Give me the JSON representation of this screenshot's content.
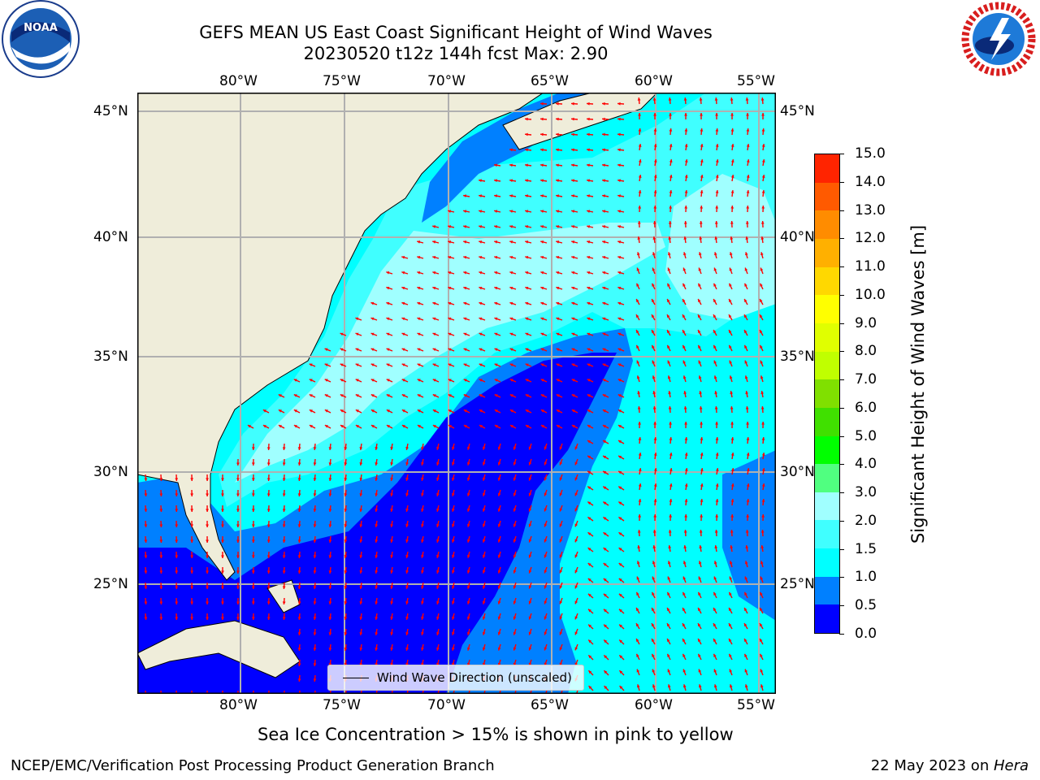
{
  "title": {
    "line1": "GEFS MEAN US East Coast Significant Height of Wind Waves",
    "line2": "20230520 t12z 144h fcst   Max: 2.90"
  },
  "logos": {
    "noaa_text": "NOAA",
    "nws_text": "NATIONAL WEATHER SERVICE"
  },
  "map": {
    "lon_labels": [
      "80°W",
      "75°W",
      "70°W",
      "65°W",
      "60°W",
      "55°W"
    ],
    "lat_labels": [
      "45°N",
      "40°N",
      "35°N",
      "30°N",
      "25°N"
    ],
    "legend_label": "Wind Wave Direction (unscaled)",
    "colors": {
      "land": "#efedda",
      "arrow": "#ff0000",
      "grid": "#b0b0b0"
    }
  },
  "colorbar": {
    "label": "Significant Height of Wind Waves [m]",
    "ticks": [
      "15.0",
      "14.0",
      "13.0",
      "12.0",
      "11.0",
      "10.0",
      "9.0",
      "8.0",
      "7.0",
      "6.0",
      "5.0",
      "4.0",
      "3.0",
      "2.0",
      "1.5",
      "1.0",
      "0.5",
      "0.0"
    ],
    "colors_bottom_to_top": [
      "#0000ff",
      "#0080ff",
      "#00ffff",
      "#40ffff",
      "#a0ffff",
      "#50ff80",
      "#00ff00",
      "#40e000",
      "#80e000",
      "#c0ff00",
      "#e0ff00",
      "#ffff00",
      "#ffd800",
      "#ffb000",
      "#ff8c00",
      "#ff5a00",
      "#ff2400"
    ]
  },
  "note": "Sea Ice Concentration > 15% is shown in pink to yellow",
  "footer": {
    "left": "NCEP/EMC/Verification Post Processing Product Generation Branch",
    "right_date": "22 May 2023 on ",
    "right_host": "Hera"
  }
}
